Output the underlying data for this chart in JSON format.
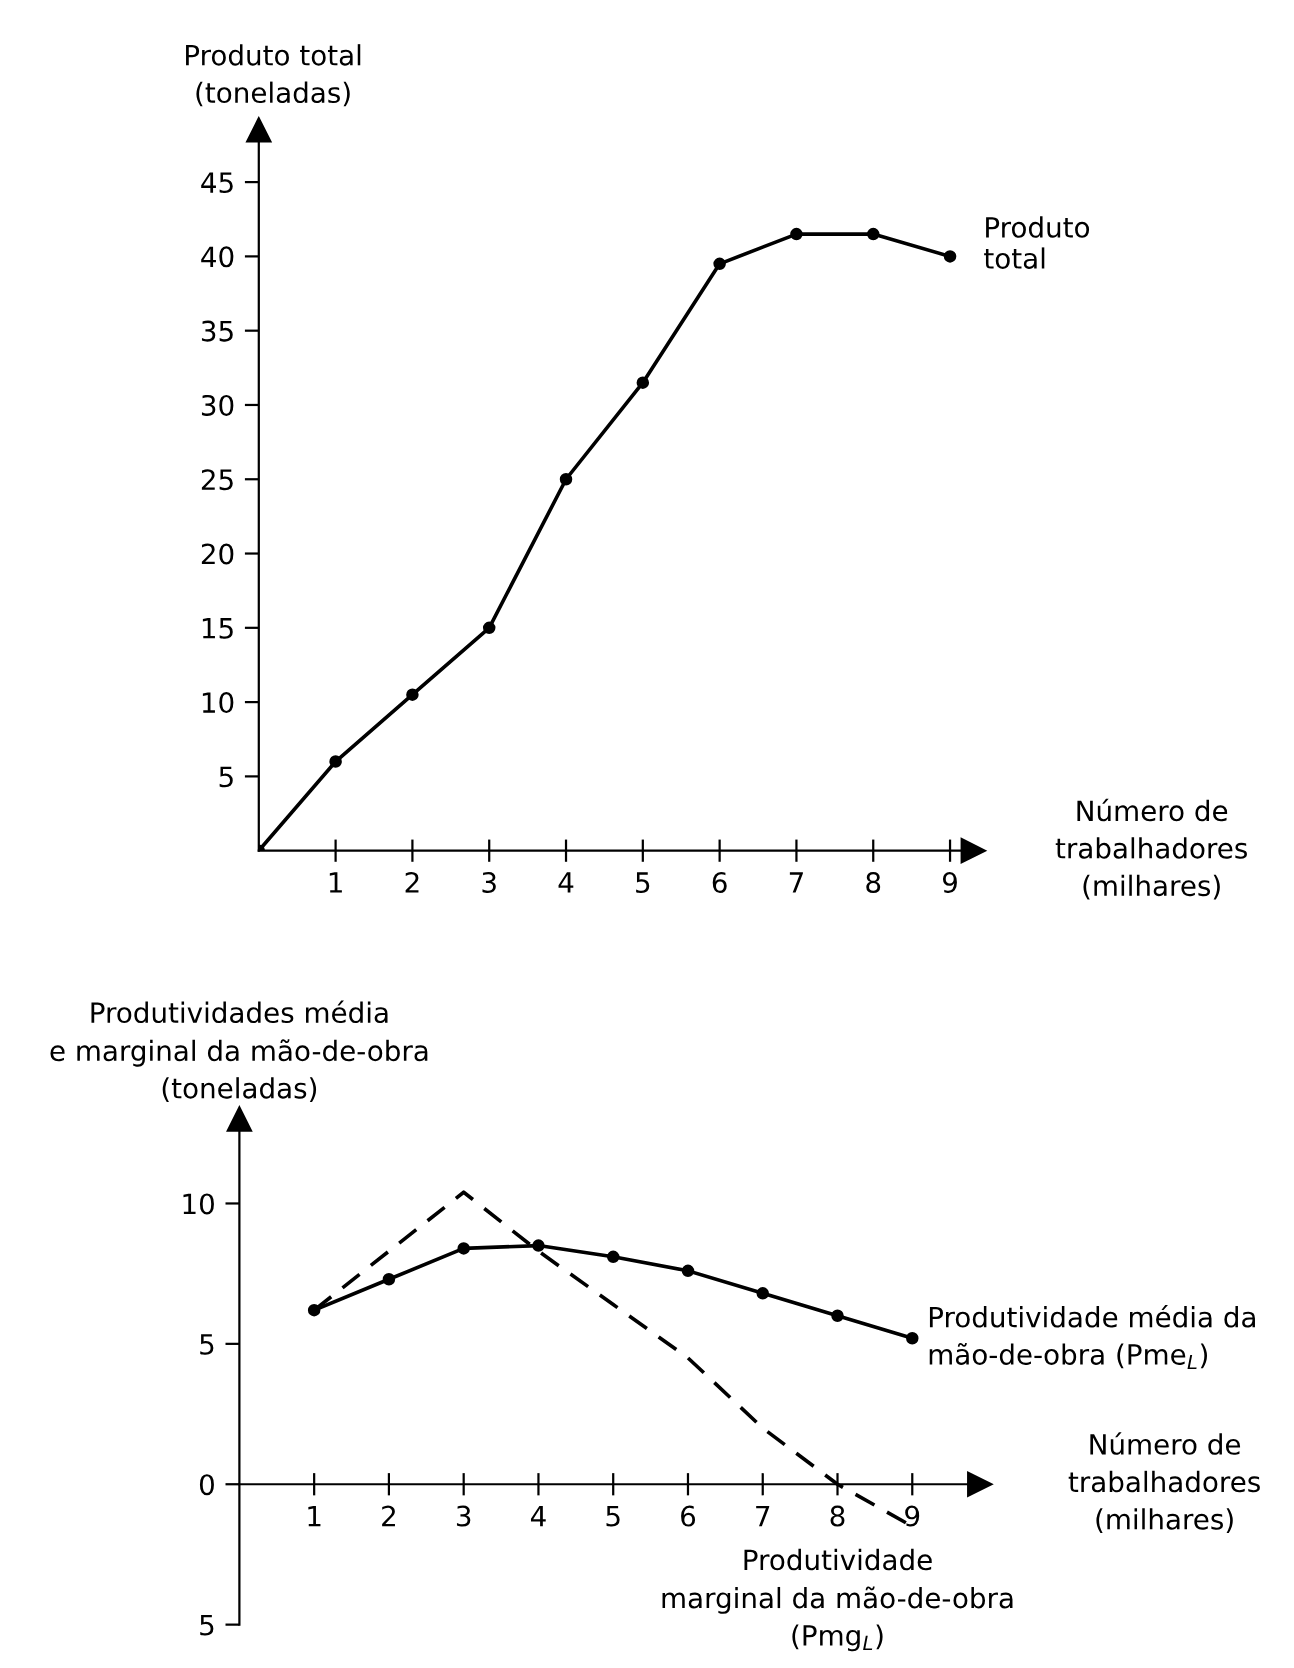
{
  "chart_data": [
    {
      "type": "line",
      "ylabel": "Produto total\n(toneladas)",
      "xlabel": "Número de\ntrabalhadores\n(milhares)",
      "x": [
        0,
        1,
        2,
        3,
        4,
        5,
        6,
        7,
        8,
        9
      ],
      "series": [
        {
          "color": "#000000",
          "values": [
            0,
            6,
            10.5,
            15,
            25,
            31.5,
            39.5,
            41.5,
            41.5,
            40
          ],
          "marker": "circle",
          "line_style": "solid"
        }
      ],
      "annotations": [
        {
          "text": "Produto\ntotal",
          "x": 9,
          "y": 40
        }
      ],
      "xlim": [
        0,
        9.3
      ],
      "ylim": [
        0,
        48.5
      ],
      "xticks": [
        1,
        2,
        3,
        4,
        5,
        6,
        7,
        8,
        9
      ],
      "yticks": [
        5,
        10,
        15,
        20,
        25,
        30,
        35,
        40,
        45
      ],
      "grid": false,
      "legend": false
    },
    {
      "type": "line",
      "ylabel": "Produtividades média\ne marginal da mão-de-obra\n(toneladas)",
      "xlabel": "Número de\ntrabalhadores\n(milhares)",
      "x": [
        1,
        2,
        3,
        4,
        5,
        6,
        7,
        8,
        9
      ],
      "series": [
        {
          "name": "Produtividade média da\nmão-de-obra (Pme$_{L}$)",
          "color": "#000000",
          "values": [
            6.2,
            7.3,
            8.4,
            8.5,
            8.1,
            7.6,
            6.8,
            6.0,
            5.2
          ],
          "marker": "circle",
          "line_style": "solid"
        },
        {
          "name": "Produtividade\nmarginal da mão-de-obra\n(Pmg$_{L}$)",
          "color": "#000000",
          "values": [
            6.2,
            8.3,
            10.4,
            8.3,
            6.4,
            4.5,
            2.0,
            0,
            -1.5
          ],
          "marker": "none",
          "line_style": "dashed"
        }
      ],
      "xlim": [
        0,
        9.9
      ],
      "ylim": [
        -5,
        13
      ],
      "xticks": [
        1,
        2,
        3,
        4,
        5,
        6,
        7,
        8,
        9
      ],
      "yticks": [
        10,
        5,
        0,
        {
          "value": -5,
          "label": "5"
        }
      ],
      "grid": false,
      "legend": false
    }
  ]
}
